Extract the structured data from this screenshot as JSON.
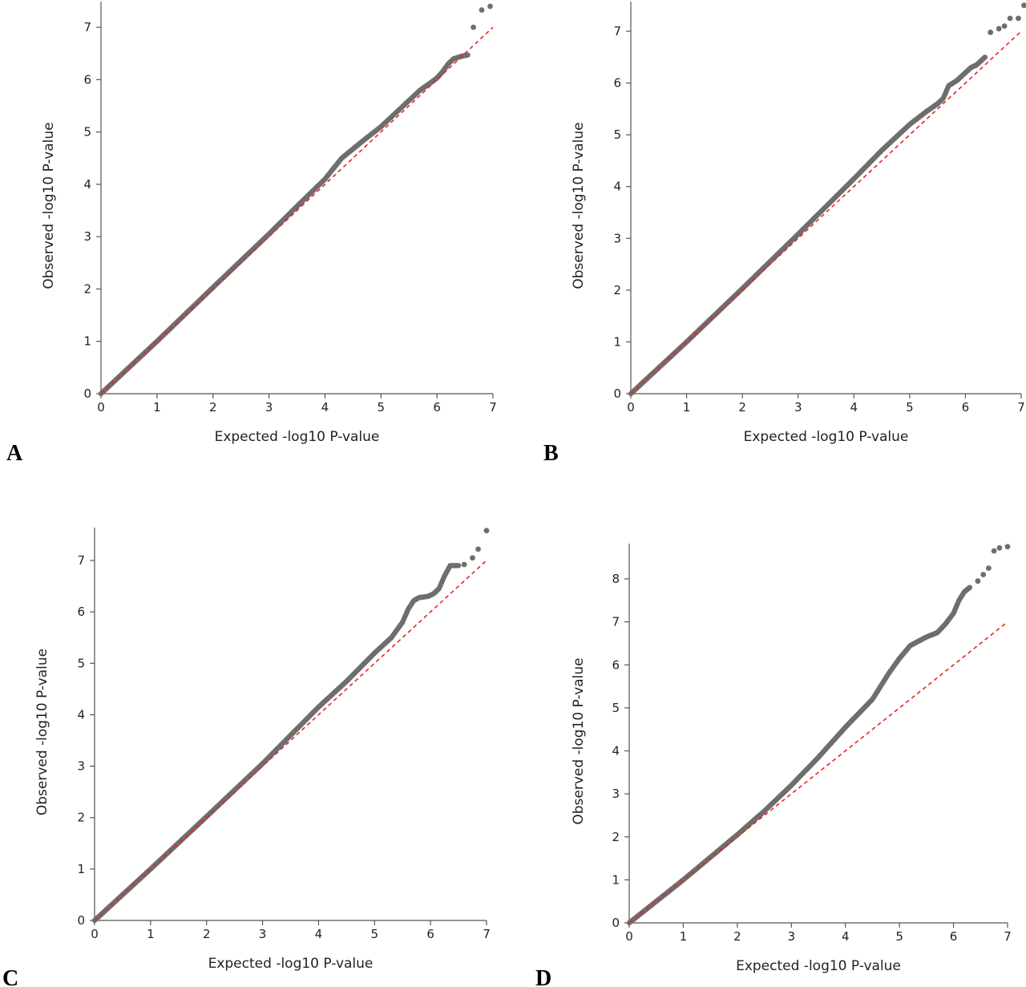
{
  "style": {
    "point_color": "#6e6e6e",
    "reference_line_color": "#e8251f",
    "axis_color": "#555555"
  },
  "chart_data": [
    {
      "panel": "A",
      "type": "scatter",
      "xlabel": "Expected -log10 P-value",
      "ylabel": "Observed -log10 P-value",
      "xlim": [
        0,
        7
      ],
      "ylim": [
        0,
        7.4
      ],
      "xticks": [
        "0",
        "1",
        "2",
        "3",
        "4",
        "5",
        "6",
        "7"
      ],
      "yticks": [
        "0",
        "1",
        "2",
        "3",
        "4",
        "5",
        "6",
        "7"
      ],
      "reference_line": [
        [
          0,
          0
        ],
        [
          7,
          7
        ]
      ],
      "series": [
        {
          "points": [
            [
              0,
              0
            ],
            [
              1,
              1.0
            ],
            [
              2,
              2.03
            ],
            [
              3,
              3.05
            ],
            [
              3.5,
              3.58
            ],
            [
              4,
              4.1
            ],
            [
              4.3,
              4.5
            ],
            [
              4.7,
              4.85
            ],
            [
              5,
              5.1
            ],
            [
              5.3,
              5.4
            ],
            [
              5.5,
              5.6
            ],
            [
              5.7,
              5.8
            ],
            [
              5.9,
              5.95
            ],
            [
              6.0,
              6.03
            ],
            [
              6.1,
              6.15
            ],
            [
              6.2,
              6.3
            ],
            [
              6.3,
              6.4
            ],
            [
              6.45,
              6.45
            ],
            [
              6.55,
              6.47
            ]
          ]
        }
      ],
      "outliers": [
        [
          6.65,
          7.0
        ],
        [
          6.8,
          7.33
        ],
        [
          6.95,
          7.4
        ]
      ]
    },
    {
      "panel": "B",
      "type": "scatter",
      "xlabel": "Expected -log10 P-value",
      "ylabel": "Observed -log10 P-value",
      "xlim": [
        0,
        7
      ],
      "ylim": [
        0,
        7.5
      ],
      "xticks": [
        "0",
        "1",
        "2",
        "3",
        "4",
        "5",
        "6",
        "7"
      ],
      "yticks": [
        "0",
        "1",
        "2",
        "3",
        "4",
        "5",
        "6",
        "7"
      ],
      "reference_line": [
        [
          0,
          0
        ],
        [
          7,
          7
        ]
      ],
      "series": [
        {
          "points": [
            [
              0,
              0
            ],
            [
              1,
              1.0
            ],
            [
              2,
              2.03
            ],
            [
              3,
              3.08
            ],
            [
              4,
              4.15
            ],
            [
              4.5,
              4.7
            ],
            [
              5,
              5.2
            ],
            [
              5.3,
              5.45
            ],
            [
              5.5,
              5.6
            ],
            [
              5.6,
              5.7
            ],
            [
              5.7,
              5.95
            ],
            [
              5.85,
              6.05
            ],
            [
              6.0,
              6.2
            ],
            [
              6.1,
              6.3
            ],
            [
              6.2,
              6.35
            ],
            [
              6.3,
              6.45
            ],
            [
              6.35,
              6.5
            ]
          ]
        }
      ],
      "outliers": [
        [
          6.45,
          6.98
        ],
        [
          6.6,
          7.05
        ],
        [
          6.7,
          7.1
        ],
        [
          6.8,
          7.25
        ],
        [
          6.95,
          7.25
        ],
        [
          7.05,
          7.5
        ]
      ]
    },
    {
      "panel": "C",
      "type": "scatter",
      "xlabel": "Expected -log10 P-value",
      "ylabel": "Observed -log10 P-value",
      "xlim": [
        0,
        7
      ],
      "ylim": [
        0,
        7.6
      ],
      "xticks": [
        "0",
        "1",
        "2",
        "3",
        "4",
        "5",
        "6",
        "7"
      ],
      "yticks": [
        "0",
        "1",
        "2",
        "3",
        "4",
        "5",
        "6",
        "7"
      ],
      "reference_line": [
        [
          0,
          0
        ],
        [
          7,
          7
        ]
      ],
      "series": [
        {
          "points": [
            [
              0,
              0
            ],
            [
              1,
              1.0
            ],
            [
              2,
              2.02
            ],
            [
              3,
              3.05
            ],
            [
              4,
              4.15
            ],
            [
              4.5,
              4.65
            ],
            [
              5,
              5.2
            ],
            [
              5.3,
              5.5
            ],
            [
              5.5,
              5.8
            ],
            [
              5.6,
              6.05
            ],
            [
              5.7,
              6.22
            ],
            [
              5.8,
              6.28
            ],
            [
              5.95,
              6.3
            ],
            [
              6.05,
              6.35
            ],
            [
              6.15,
              6.45
            ],
            [
              6.25,
              6.7
            ],
            [
              6.35,
              6.9
            ],
            [
              6.5,
              6.9
            ]
          ]
        }
      ],
      "outliers": [
        [
          6.6,
          6.92
        ],
        [
          6.75,
          7.05
        ],
        [
          6.85,
          7.22
        ],
        [
          7.0,
          7.58
        ]
      ]
    },
    {
      "panel": "D",
      "type": "scatter",
      "xlabel": "Expected -log10 P-value",
      "ylabel": "Observed -log10 P-value",
      "xlim": [
        0,
        7
      ],
      "ylim": [
        0,
        8.8
      ],
      "xticks": [
        "0",
        "1",
        "2",
        "3",
        "4",
        "5",
        "6",
        "7"
      ],
      "yticks": [
        "0",
        "1",
        "2",
        "3",
        "4",
        "5",
        "6",
        "7",
        "8"
      ],
      "reference_line": [
        [
          0,
          0
        ],
        [
          7,
          7
        ]
      ],
      "series": [
        {
          "points": [
            [
              0,
              0
            ],
            [
              1,
              1.0
            ],
            [
              2,
              2.05
            ],
            [
              2.5,
              2.6
            ],
            [
              3,
              3.2
            ],
            [
              3.5,
              3.85
            ],
            [
              4,
              4.55
            ],
            [
              4.5,
              5.2
            ],
            [
              4.8,
              5.8
            ],
            [
              5,
              6.15
            ],
            [
              5.2,
              6.45
            ],
            [
              5.5,
              6.65
            ],
            [
              5.7,
              6.75
            ],
            [
              5.85,
              6.95
            ],
            [
              6.0,
              7.2
            ],
            [
              6.1,
              7.5
            ],
            [
              6.2,
              7.7
            ],
            [
              6.3,
              7.8
            ]
          ]
        }
      ],
      "outliers": [
        [
          6.45,
          7.95
        ],
        [
          6.55,
          8.1
        ],
        [
          6.65,
          8.25
        ],
        [
          6.75,
          8.65
        ],
        [
          6.85,
          8.72
        ],
        [
          7.0,
          8.75
        ]
      ]
    }
  ]
}
